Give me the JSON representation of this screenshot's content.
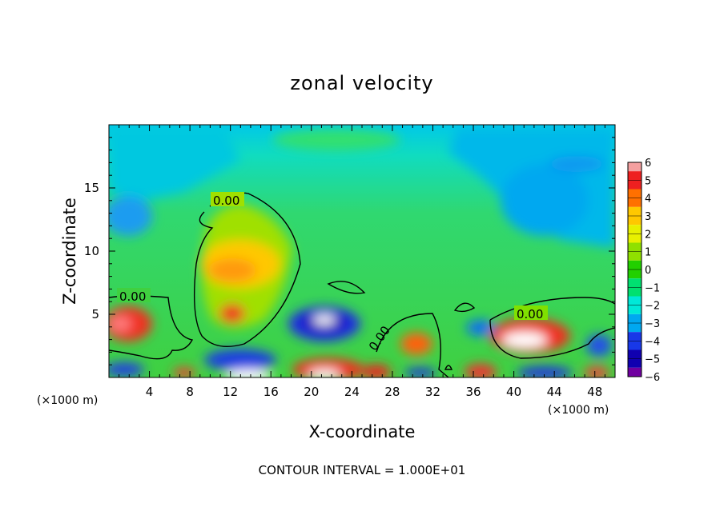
{
  "chart_data": {
    "type": "heatmap",
    "title": "zonal velocity",
    "xlabel": "X-coordinate",
    "ylabel": "Z-coordinate",
    "x_unit_label": "(×1000 m)",
    "x_unit_label_right": "(×1000 m)",
    "xlim": [
      0,
      50
    ],
    "ylim": [
      0,
      20
    ],
    "x_ticks": [
      "4",
      "8",
      "12",
      "16",
      "20",
      "24",
      "28",
      "32",
      "36",
      "40",
      "44",
      "48"
    ],
    "y_ticks": [
      "5",
      "10",
      "15"
    ],
    "colorbar": {
      "range": [
        -6,
        6
      ],
      "ticks": [
        "6",
        "5",
        "4",
        "3",
        "2",
        "1",
        "0",
        "−1",
        "−2",
        "−3",
        "−4",
        "−5",
        "−6"
      ],
      "colors": [
        "#f4a0a0",
        "#ee2020",
        "#ff7000",
        "#ffc800",
        "#e8f000",
        "#90e000",
        "#22d000",
        "#00e070",
        "#00e8d8",
        "#00a8f0",
        "#1838e8",
        "#1000b0",
        "#7000a0"
      ]
    },
    "contour_label": "0.00",
    "contour_interval": "CONTOUR INTERVAL = 1.000E+01",
    "features": [
      {
        "x": 14,
        "z": 10,
        "value": 2
      },
      {
        "x": 12,
        "z": 9,
        "value": 4
      },
      {
        "x": 12,
        "z": 5,
        "value": 5
      },
      {
        "x": 2,
        "z": 4,
        "value": 5
      },
      {
        "x": 21,
        "z": 4.5,
        "value": -4
      },
      {
        "x": 21,
        "z": 4.5,
        "value": -7
      },
      {
        "x": 42,
        "z": 3,
        "value": 5
      },
      {
        "x": 41,
        "z": 3,
        "value": 7
      },
      {
        "x": 30,
        "z": 3,
        "value": 4
      },
      {
        "x": 4,
        "z": 14,
        "value": -3
      },
      {
        "x": 42,
        "z": 12,
        "value": -3
      }
    ]
  }
}
